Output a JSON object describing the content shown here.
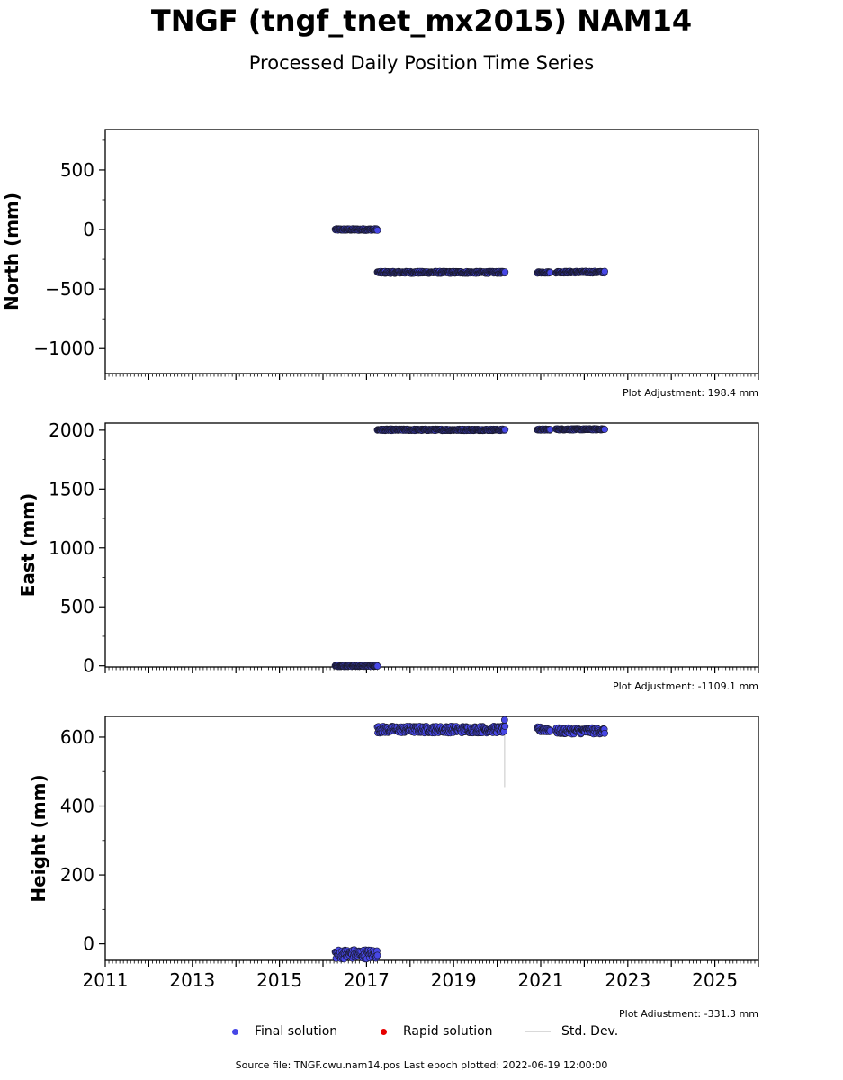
{
  "header": {
    "title": "TNGF (tngf_tnet_mx2015) NAM14",
    "subtitle": "Processed Daily Position Time Series"
  },
  "legend": {
    "final_label": "Final solution",
    "rapid_label": "Rapid solution",
    "std_label": "Std. Dev."
  },
  "footer": {
    "source": "Source file: TNGF.cwu.nam14.pos  Last epoch plotted: 2022-06-19 12:00:00"
  },
  "colors": {
    "final": "#4747e6",
    "rapid": "#e60000",
    "std": "#d9d9d9",
    "marker_edge": "#1a1a2e"
  },
  "chart_data": [
    {
      "type": "scatter",
      "ylabel": "North (mm)",
      "xlim": [
        2011,
        2026
      ],
      "ylim": [
        -1210,
        840
      ],
      "yticks": [
        500,
        0,
        -500,
        -1000
      ],
      "ytick_labels": [
        "500",
        "0",
        "−500",
        "−1000"
      ],
      "show_xtick_labels": false,
      "adjustment": "Plot Adjustment: 198.4 mm",
      "segments": [
        {
          "x0": 2016.28,
          "x1": 2017.25,
          "y": 0,
          "noise": 7
        },
        {
          "x0": 2017.25,
          "x1": 2020.18,
          "y": -360,
          "noise": 8
        },
        {
          "x0": 2020.92,
          "x1": 2021.22,
          "y": -360,
          "noise": 6
        },
        {
          "x0": 2021.35,
          "x1": 2022.47,
          "y": -358,
          "noise": 7
        }
      ]
    },
    {
      "type": "scatter",
      "ylabel": "East (mm)",
      "xlim": [
        2011,
        2026
      ],
      "ylim": [
        -10,
        2060
      ],
      "yticks": [
        2000,
        1500,
        1000,
        500,
        0
      ],
      "ytick_labels": [
        "2000",
        "1500",
        "1000",
        "500",
        "0"
      ],
      "show_xtick_labels": false,
      "adjustment": "Plot Adjustment: -1109.1 mm",
      "segments": [
        {
          "x0": 2016.28,
          "x1": 2017.25,
          "y": 0,
          "noise": 6
        },
        {
          "x0": 2017.25,
          "x1": 2020.18,
          "y": 2003,
          "noise": 6
        },
        {
          "x0": 2020.92,
          "x1": 2021.22,
          "y": 2005,
          "noise": 5
        },
        {
          "x0": 2021.35,
          "x1": 2022.47,
          "y": 2007,
          "noise": 5
        }
      ]
    },
    {
      "type": "scatter",
      "ylabel": "Height (mm)",
      "xlim": [
        2011,
        2026
      ],
      "ylim": [
        -48,
        660
      ],
      "yticks": [
        600,
        400,
        200,
        0
      ],
      "ytick_labels": [
        "600",
        "400",
        "200",
        "0"
      ],
      "xticks": [
        2011,
        2013,
        2015,
        2017,
        2019,
        2021,
        2023,
        2025
      ],
      "xtick_labels": [
        "2011",
        "2013",
        "2015",
        "2017",
        "2019",
        "2021",
        "2023",
        "2025"
      ],
      "show_xtick_labels": true,
      "adjustment": "Plot Adjustment: -331.3 mm",
      "segments": [
        {
          "x0": 2016.28,
          "x1": 2017.25,
          "y": -30,
          "noise": 14
        },
        {
          "x0": 2017.25,
          "x1": 2020.18,
          "y": 622,
          "noise": 10
        },
        {
          "x0": 2020.92,
          "x1": 2021.22,
          "y": 622,
          "noise": 8
        },
        {
          "x0": 2021.35,
          "x1": 2022.47,
          "y": 618,
          "noise": 9
        }
      ],
      "outliers": [
        {
          "x": 2020.17,
          "y": 650,
          "err_low": 455
        }
      ]
    }
  ]
}
